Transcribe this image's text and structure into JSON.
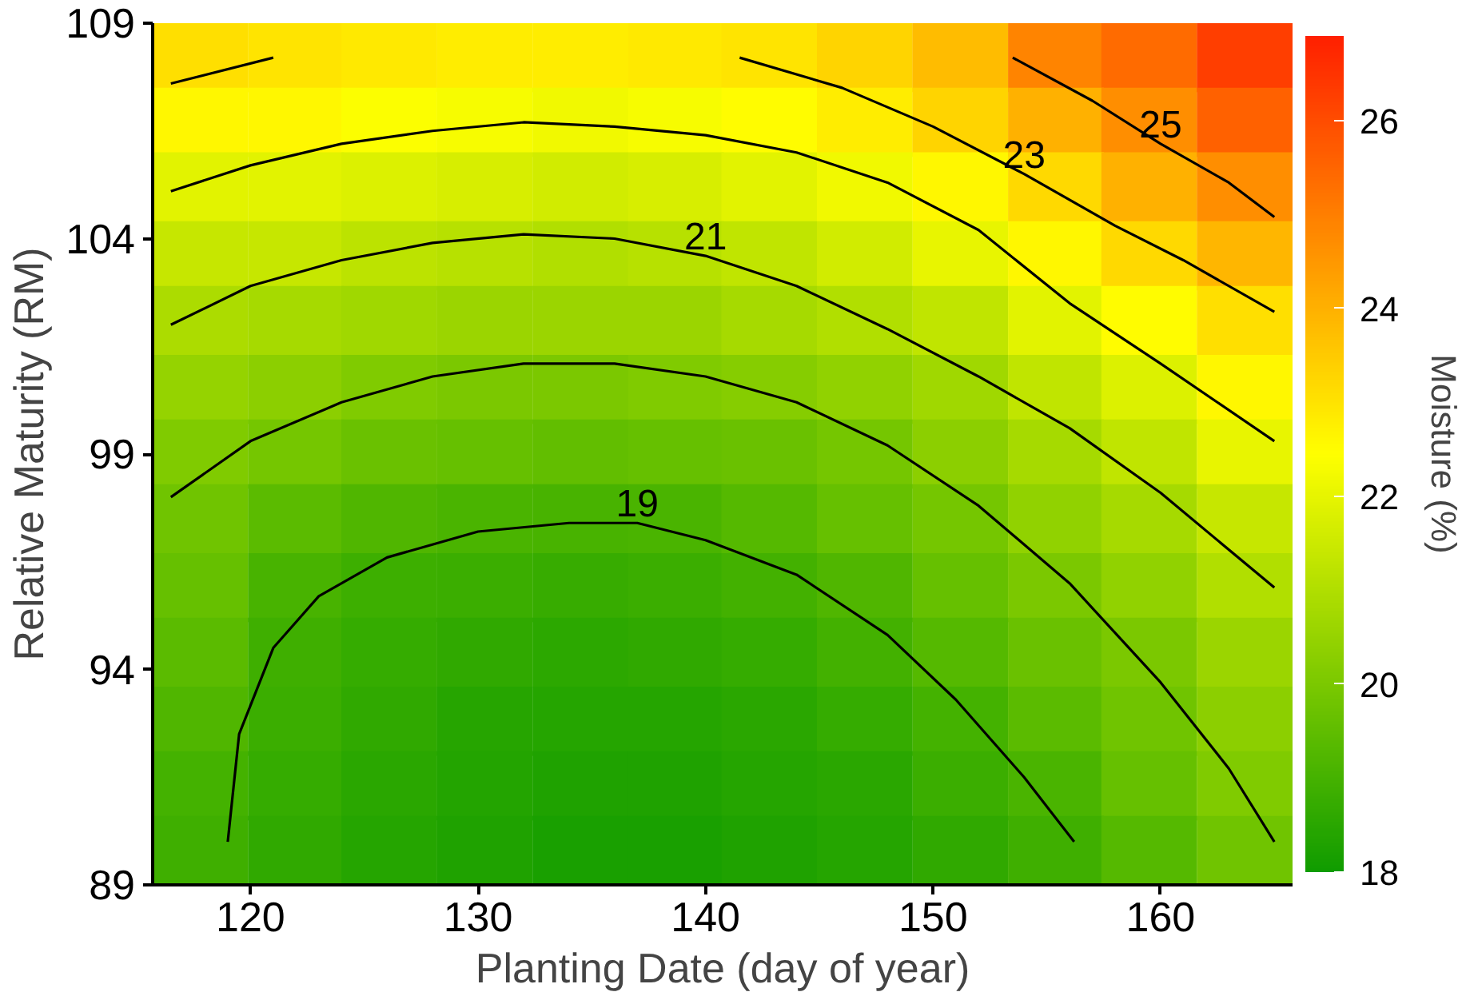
{
  "chart_data": {
    "type": "heatmap",
    "xlabel": "Planting Date (day of year)",
    "ylabel": "Relative Maturity (RM)",
    "clabel": "Moisture (%)",
    "x": [
      117.8,
      122.0,
      126.1,
      130.3,
      134.5,
      138.7,
      142.8,
      147.0,
      151.2,
      155.4,
      159.5,
      163.7
    ],
    "y": [
      108.2,
      106.7,
      105.2,
      103.6,
      102.1,
      100.5,
      99.0,
      97.5,
      95.9,
      94.4,
      92.8,
      91.3,
      89.8
    ],
    "cells": [
      [
        23.1,
        23.0,
        22.9,
        22.8,
        22.8,
        22.9,
        23.0,
        23.3,
        23.8,
        24.9,
        25.4,
        26.3
      ],
      [
        22.6,
        22.6,
        22.4,
        22.3,
        22.2,
        22.3,
        22.5,
        22.8,
        23.3,
        24.0,
        24.7,
        25.6
      ],
      [
        21.9,
        21.9,
        21.8,
        21.7,
        21.6,
        21.7,
        21.9,
        22.2,
        22.6,
        23.2,
        24.0,
        24.7
      ],
      [
        21.4,
        21.4,
        21.2,
        21.1,
        21.0,
        21.1,
        21.3,
        21.6,
        22.0,
        22.6,
        23.2,
        23.9
      ],
      [
        20.9,
        20.8,
        20.7,
        20.6,
        20.6,
        20.6,
        20.8,
        21.0,
        21.3,
        21.9,
        22.5,
        23.1
      ],
      [
        20.5,
        20.3,
        20.1,
        20.0,
        20.0,
        20.1,
        20.2,
        20.4,
        20.7,
        21.3,
        21.8,
        22.6
      ],
      [
        20.1,
        19.9,
        19.7,
        19.6,
        19.55,
        19.6,
        19.7,
        19.9,
        20.3,
        20.8,
        21.3,
        22.0
      ],
      [
        19.8,
        19.4,
        19.2,
        19.1,
        19.05,
        19.1,
        19.3,
        19.6,
        19.9,
        20.4,
        20.8,
        21.4
      ],
      [
        19.6,
        19.05,
        18.85,
        18.8,
        18.75,
        18.8,
        18.95,
        19.2,
        19.6,
        20.0,
        20.4,
        21.0
      ],
      [
        19.4,
        18.9,
        18.7,
        18.6,
        18.55,
        18.6,
        18.7,
        18.95,
        19.3,
        19.7,
        20.0,
        20.6
      ],
      [
        19.2,
        18.8,
        18.6,
        18.45,
        18.4,
        18.4,
        18.5,
        18.7,
        19.0,
        19.4,
        19.8,
        20.3
      ],
      [
        19.0,
        18.7,
        18.5,
        18.35,
        18.3,
        18.3,
        18.4,
        18.5,
        18.8,
        19.1,
        19.6,
        20.1
      ],
      [
        18.9,
        18.6,
        18.4,
        18.3,
        18.2,
        18.2,
        18.3,
        18.4,
        18.6,
        18.9,
        19.3,
        19.8
      ]
    ],
    "colors": [
      "#109c00",
      "#ffff00",
      "#ff2000"
    ],
    "clim": [
      18,
      26.9
    ],
    "cticks": [
      18,
      20,
      22,
      24,
      26
    ],
    "xlim": [
      115.7,
      165.8
    ],
    "xticks": [
      120,
      130,
      140,
      150,
      160
    ],
    "ylim": [
      89,
      109
    ],
    "yticks": [
      89,
      94,
      99,
      104,
      109
    ],
    "series": [
      {
        "type": "line",
        "name": "19",
        "color": "#000000",
        "x": [
          119,
          119.5,
          121,
          123,
          126,
          130,
          134,
          137,
          140,
          144,
          148,
          151,
          154,
          156.2
        ],
        "values": [
          90,
          92.5,
          94.5,
          95.7,
          96.6,
          97.2,
          97.4,
          97.4,
          97.0,
          96.2,
          94.8,
          93.3,
          91.5,
          90
        ]
      },
      {
        "type": "line",
        "color": "#000000",
        "x": [
          116.5,
          120,
          124,
          128,
          132,
          136,
          140,
          144,
          148,
          152,
          156,
          160,
          163,
          165
        ],
        "values": [
          98,
          99.3,
          100.2,
          100.8,
          101.1,
          101.1,
          100.8,
          100.2,
          99.2,
          97.8,
          96.0,
          93.7,
          91.7,
          90
        ]
      },
      {
        "type": "line",
        "name": "21",
        "color": "#000000",
        "x": [
          116.5,
          120,
          124,
          128,
          132,
          136,
          140,
          144,
          148,
          152,
          156,
          160,
          165
        ],
        "values": [
          102,
          102.9,
          103.5,
          103.9,
          104.1,
          104.0,
          103.6,
          102.9,
          101.9,
          100.8,
          99.6,
          98.1,
          95.9
        ]
      },
      {
        "type": "line",
        "color": "#000000",
        "x": [
          116.5,
          120,
          124,
          128,
          132,
          136,
          140,
          144,
          148,
          152,
          156,
          160,
          165
        ],
        "values": [
          105.1,
          105.7,
          106.2,
          106.5,
          106.7,
          106.6,
          106.4,
          106.0,
          105.3,
          104.2,
          102.5,
          101.1,
          99.3
        ]
      },
      {
        "type": "line",
        "color": "#000000",
        "x": [
          116.5,
          121
        ],
        "values": [
          107.6,
          108.2
        ]
      },
      {
        "type": "line",
        "name": "23",
        "color": "#000000",
        "x": [
          141.5,
          146,
          150,
          154,
          158,
          161,
          165
        ],
        "values": [
          108.2,
          107.5,
          106.6,
          105.5,
          104.3,
          103.5,
          102.3
        ]
      },
      {
        "type": "line",
        "name": "25",
        "color": "#000000",
        "x": [
          153.5,
          157,
          160,
          163,
          165
        ],
        "values": [
          108.2,
          107.2,
          106.2,
          105.3,
          104.5
        ]
      }
    ]
  }
}
